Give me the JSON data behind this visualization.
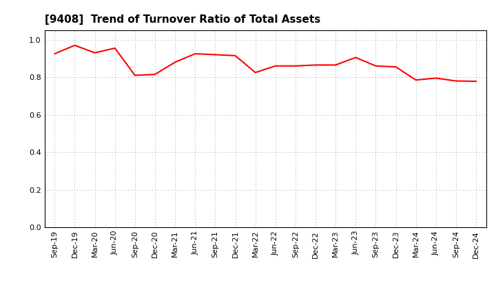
{
  "title": "[9408]  Trend of Turnover Ratio of Total Assets",
  "x_labels": [
    "Sep-19",
    "Dec-19",
    "Mar-20",
    "Jun-20",
    "Sep-20",
    "Dec-20",
    "Mar-21",
    "Jun-21",
    "Sep-21",
    "Dec-21",
    "Mar-22",
    "Jun-22",
    "Sep-22",
    "Dec-22",
    "Mar-23",
    "Jun-23",
    "Sep-23",
    "Dec-23",
    "Mar-24",
    "Jun-24",
    "Sep-24",
    "Dec-24"
  ],
  "y_values": [
    0.925,
    0.97,
    0.93,
    0.955,
    0.81,
    0.815,
    0.88,
    0.925,
    0.92,
    0.915,
    0.825,
    0.86,
    0.86,
    0.865,
    0.865,
    0.905,
    0.86,
    0.855,
    0.785,
    0.795,
    0.78,
    0.778
  ],
  "line_color": "#FF0000",
  "line_width": 1.5,
  "ylim": [
    0.0,
    1.05
  ],
  "yticks": [
    0.0,
    0.2,
    0.4,
    0.6,
    0.8,
    1.0
  ],
  "ytick_labels": [
    "0.0",
    "0.2",
    "0.4",
    "0.6",
    "0.8",
    "1.0"
  ],
  "background_color": "#FFFFFF",
  "grid_color": "#999999",
  "title_fontsize": 11,
  "tick_fontsize": 8,
  "fig_width": 7.2,
  "fig_height": 4.4,
  "dpi": 100
}
